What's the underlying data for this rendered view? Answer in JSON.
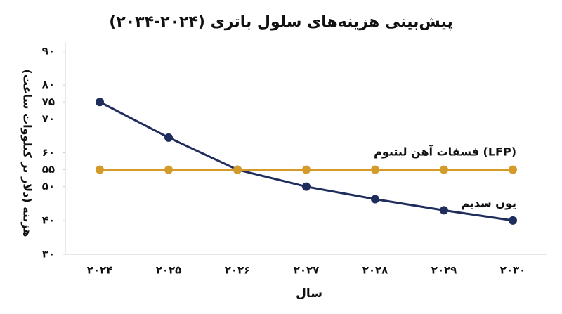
{
  "chart_data": {
    "type": "line",
    "title": "پیش‌بینی هزینه‌های سلول باتری (۲۰۲۴-۲۰۳۴)",
    "x_label": "سال",
    "y_label": "هزینه (دلار بر کیلووات ساعت)",
    "categories": [
      "۲۰۲۴",
      "۲۰۲۵",
      "۲۰۲۶",
      "۲۰۲۷",
      "۲۰۲۸",
      "۲۰۲۹",
      "۲۰۳۰"
    ],
    "series": [
      {
        "name": "یون سدیم",
        "color": "#1f2d5c",
        "values": [
          75,
          64.5,
          55,
          50,
          46.3,
          43,
          40
        ]
      },
      {
        "name": "فسفات آهن لیتیوم (LFP)",
        "color": "#d49a2a",
        "values": [
          55,
          55,
          55,
          55,
          55,
          55,
          55
        ]
      }
    ],
    "ylim": [
      30,
      90
    ],
    "yticks": [
      {
        "value": 30,
        "label": "۳۰"
      },
      {
        "value": 40,
        "label": "۴۰"
      },
      {
        "value": 50,
        "label": "۵۰"
      },
      {
        "value": 55,
        "label": "۵۵"
      },
      {
        "value": 60,
        "label": "۶۰"
      },
      {
        "value": 70,
        "label": "۷۰"
      },
      {
        "value": 75,
        "label": "۷۵"
      },
      {
        "value": 80,
        "label": "۸۰"
      },
      {
        "value": 90,
        "label": "۹۰"
      }
    ],
    "grid": false
  }
}
